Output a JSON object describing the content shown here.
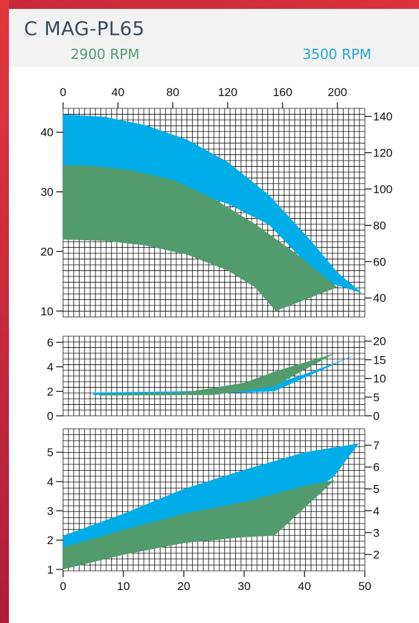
{
  "header": {
    "title": "C MAG-PL65",
    "rpm_low": "2900 RPM",
    "rpm_high": "3500 RPM"
  },
  "colors": {
    "rpm_low": "#519b6d",
    "rpm_high": "#00ade8",
    "frame": "#d22d3b",
    "grid": "#000000"
  },
  "chart_data": [
    {
      "type": "area",
      "panel": "head",
      "x_top_ticks": [
        "0",
        "40",
        "80",
        "120",
        "160",
        "200"
      ],
      "x_top_lim": [
        0,
        220
      ],
      "y_left_ticks": [
        "10",
        "20",
        "30",
        "40"
      ],
      "y_left_lim": [
        9,
        44
      ],
      "y_right_ticks": [
        "40",
        "60",
        "80",
        "100",
        "120",
        "140"
      ],
      "y_right_lim": [
        29.5,
        144.4
      ],
      "grid": true,
      "series": [
        {
          "name": "3500 RPM",
          "upper": [
            [
              0,
              43
            ],
            [
              30,
              42.6
            ],
            [
              60,
              41.2
            ],
            [
              90,
              38.8
            ],
            [
              120,
              35
            ],
            [
              150,
              29.5
            ],
            [
              180,
              22
            ],
            [
              200,
              16.5
            ],
            [
              218,
              13
            ]
          ],
          "lower": [
            [
              0,
              33
            ],
            [
              40,
              32.6
            ],
            [
              80,
              31
            ],
            [
              120,
              28
            ],
            [
              150,
              24.5
            ],
            [
              190,
              15
            ],
            [
              218,
              13
            ]
          ]
        },
        {
          "name": "2900 RPM",
          "upper": [
            [
              0,
              34.5
            ],
            [
              20,
              34.4
            ],
            [
              50,
              33.6
            ],
            [
              80,
              32
            ],
            [
              110,
              28.8
            ],
            [
              140,
              24.6
            ],
            [
              170,
              19.6
            ],
            [
              200,
              14
            ]
          ],
          "lower": [
            [
              0,
              22
            ],
            [
              30,
              21.8
            ],
            [
              60,
              21
            ],
            [
              90,
              19.5
            ],
            [
              120,
              16.8
            ],
            [
              140,
              14
            ],
            [
              155,
              10
            ]
          ]
        }
      ]
    },
    {
      "type": "area",
      "panel": "npsh",
      "y_left_ticks": [
        "0",
        "2",
        "4",
        "6"
      ],
      "y_left_lim": [
        0,
        6.5
      ],
      "y_right_ticks": [
        "0",
        "5",
        "10",
        "15",
        "20"
      ],
      "y_right_lim": [
        0,
        21.3
      ],
      "grid": true,
      "series": [
        {
          "name": "3500 RPM",
          "upper": [
            [
              5,
              1.9
            ],
            [
              20,
              2.0
            ],
            [
              30,
              2.2
            ],
            [
              35,
              2.6
            ],
            [
              40,
              3.4
            ],
            [
              45,
              4.3
            ],
            [
              49,
              5.1
            ]
          ],
          "lower": [
            [
              5,
              1.7
            ],
            [
              25,
              1.8
            ],
            [
              35,
              2.0
            ],
            [
              49,
              5.1
            ]
          ]
        },
        {
          "name": "2900 RPM",
          "upper": [
            [
              6,
              1.75
            ],
            [
              20,
              1.9
            ],
            [
              30,
              2.7
            ],
            [
              35,
              3.6
            ],
            [
              45,
              5.1
            ]
          ],
          "lower": [
            [
              6,
              1.65
            ],
            [
              25,
              1.7
            ],
            [
              35,
              2.4
            ],
            [
              45,
              5.1
            ]
          ]
        }
      ]
    },
    {
      "type": "area",
      "panel": "power",
      "x_bottom_ticks": [
        "0",
        "10",
        "20",
        "30",
        "40",
        "50"
      ],
      "x_bottom_lim": [
        0,
        50
      ],
      "y_left_ticks": [
        "1",
        "2",
        "3",
        "4",
        "5"
      ],
      "y_left_lim": [
        0.95,
        5.8
      ],
      "y_right_ticks": [
        "2",
        "3",
        "4",
        "5",
        "6",
        "7"
      ],
      "y_right_lim": [
        1.25,
        7.75
      ],
      "grid": true,
      "series": [
        {
          "name": "3500 RPM",
          "upper": [
            [
              0,
              2.15
            ],
            [
              10,
              2.9
            ],
            [
              20,
              3.75
            ],
            [
              30,
              4.4
            ],
            [
              40,
              5.0
            ],
            [
              49,
              5.3
            ]
          ],
          "lower": [
            [
              0,
              1.0
            ],
            [
              10,
              1.6
            ],
            [
              20,
              2.2
            ],
            [
              30,
              2.5
            ],
            [
              35,
              2.6
            ],
            [
              40,
              3.4
            ],
            [
              45,
              4.2
            ],
            [
              49,
              5.3
            ]
          ]
        },
        {
          "name": "2900 RPM",
          "upper": [
            [
              0,
              1.75
            ],
            [
              10,
              2.35
            ],
            [
              20,
              2.9
            ],
            [
              30,
              3.3
            ],
            [
              40,
              3.85
            ],
            [
              45,
              4.05
            ]
          ],
          "lower": [
            [
              0,
              1.0
            ],
            [
              10,
              1.5
            ],
            [
              20,
              1.9
            ],
            [
              30,
              2.1
            ],
            [
              35,
              2.15
            ],
            [
              45,
              4.05
            ]
          ]
        }
      ]
    }
  ]
}
